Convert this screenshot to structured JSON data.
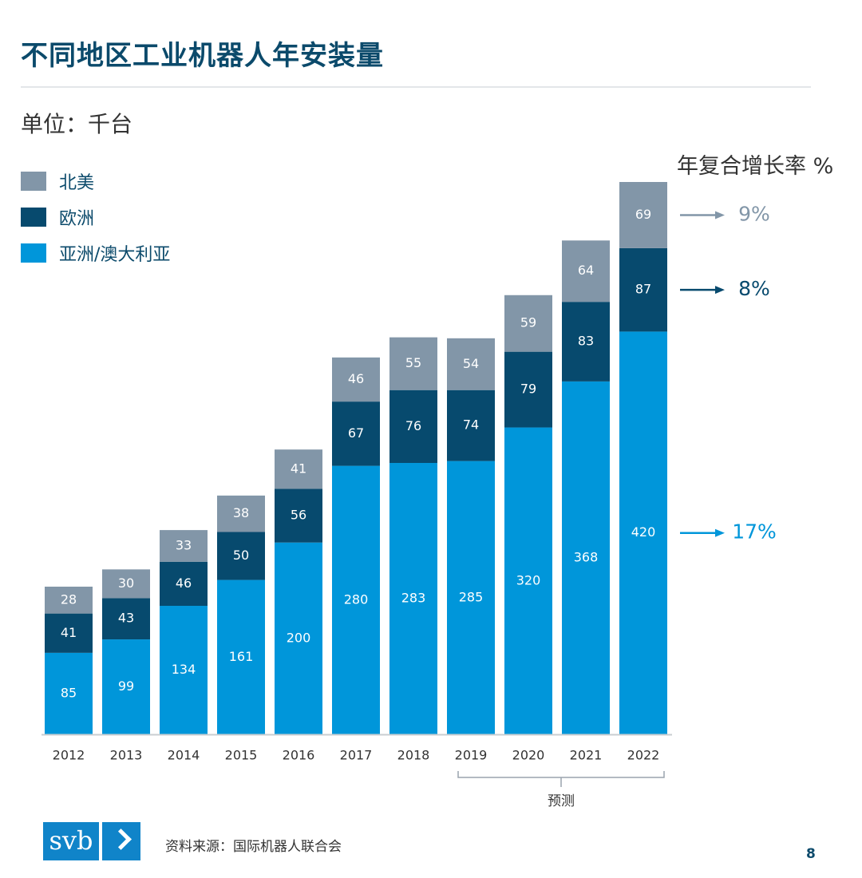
{
  "title": "不同地区工业机器人年安装量",
  "unit_label": "单位：千台",
  "legend": [
    {
      "label": "北美",
      "color": "#8296a8"
    },
    {
      "label": "欧洲",
      "color": "#074a6e"
    },
    {
      "label": "亚洲/澳大利亚",
      "color": "#0096da"
    }
  ],
  "cagr": {
    "title": "年复合增长率 %",
    "items": [
      {
        "region": "北美",
        "value": "9%",
        "color": "#8296a8"
      },
      {
        "region": "欧洲",
        "value": "8%",
        "color": "#074a6e"
      },
      {
        "region": "亚洲/澳大利亚",
        "value": "17%",
        "color": "#0096da"
      }
    ]
  },
  "chart_data": {
    "type": "bar",
    "stacked": true,
    "title": "不同地区工业机器人年安装量",
    "ylabel": "单位：千台",
    "categories": [
      "2012",
      "2013",
      "2014",
      "2015",
      "2016",
      "2017",
      "2018",
      "2019",
      "2020",
      "2021",
      "2022"
    ],
    "series": [
      {
        "name": "亚洲/澳大利亚",
        "color": "#0096da",
        "values": [
          85,
          99,
          134,
          161,
          200,
          280,
          283,
          285,
          320,
          368,
          420
        ]
      },
      {
        "name": "欧洲",
        "color": "#074a6e",
        "values": [
          41,
          43,
          46,
          50,
          56,
          67,
          76,
          74,
          79,
          83,
          87
        ]
      },
      {
        "name": "北美",
        "color": "#8296a8",
        "values": [
          28,
          30,
          33,
          38,
          41,
          46,
          55,
          54,
          59,
          64,
          69
        ]
      }
    ],
    "forecast": {
      "label": "预测",
      "from": "2019",
      "to": "2022"
    },
    "ylim": [
      0,
      576
    ]
  },
  "footer": {
    "logo_text": "svb",
    "source": "资料来源：国际机器人联合会",
    "page_number": "8"
  }
}
